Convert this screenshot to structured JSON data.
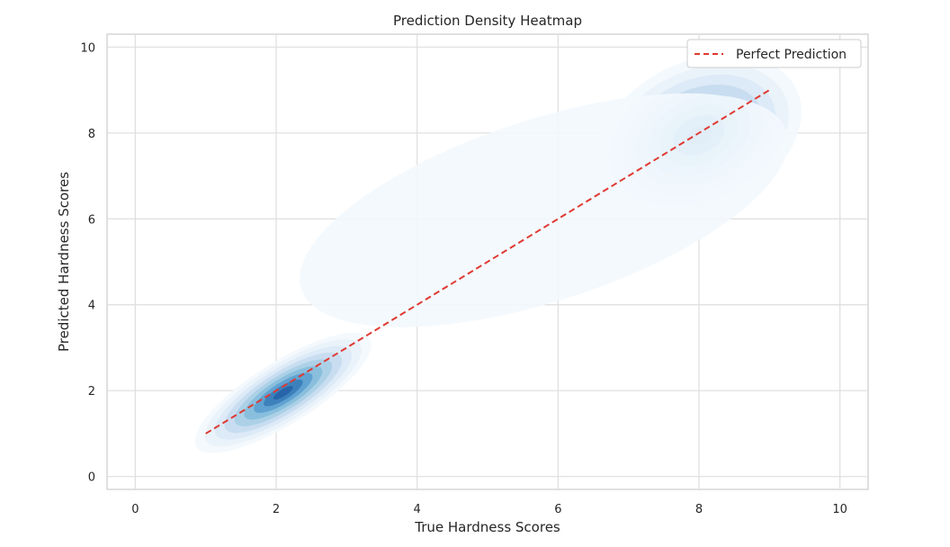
{
  "chart_data": {
    "type": "heatmap",
    "subtype": "kde-density",
    "title": "Prediction Density Heatmap",
    "xlabel": "True Hardness Scores",
    "ylabel": "Predicted Hardness Scores",
    "xlim": [
      -0.4,
      10.4
    ],
    "ylim": [
      -0.3,
      10.3
    ],
    "x_ticks": [
      0,
      2,
      4,
      6,
      8,
      10
    ],
    "y_ticks": [
      0,
      2,
      4,
      6,
      8,
      10
    ],
    "grid": true,
    "colormap": "Blues",
    "legend": {
      "location": "top-right",
      "entries": [
        "Perfect Prediction"
      ]
    },
    "series": [
      {
        "name": "Perfect Prediction",
        "kind": "dashed-line",
        "color": "#e03a32",
        "x": [
          1,
          9
        ],
        "y": [
          1,
          9
        ]
      }
    ],
    "density_clusters": [
      {
        "center_x": 2.1,
        "center_y": 1.95,
        "spread_major": 1.8,
        "spread_minor": 0.55,
        "angle_deg": 32,
        "peak": 1.0
      },
      {
        "center_x": 8.0,
        "center_y": 7.95,
        "spread_major": 1.9,
        "spread_minor": 1.3,
        "angle_deg": 25,
        "peak": 0.85
      },
      {
        "center_x": 5.8,
        "center_y": 6.2,
        "spread_major": 4.5,
        "spread_minor": 1.6,
        "angle_deg": 18,
        "peak": 0.15
      }
    ]
  },
  "colors": {
    "grid": "#dedede",
    "axes_frame": "#cccccc",
    "density_levels": [
      "#f3f8fd",
      "#e9f2fa",
      "#dbe9f6",
      "#c6dbef",
      "#a9cfe5",
      "#85bcdc",
      "#5c9fcf",
      "#3a7db9",
      "#2462a6"
    ]
  }
}
